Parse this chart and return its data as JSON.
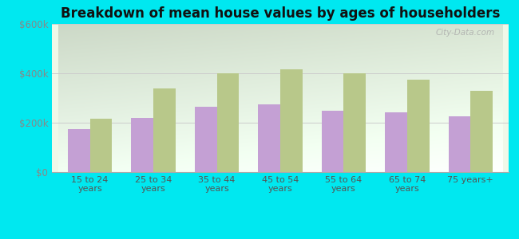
{
  "title": "Breakdown of mean house values by ages of householders",
  "categories": [
    "15 to 24\nyears",
    "25 to 34\nyears",
    "35 to 44\nyears",
    "45 to 54\nyears",
    "55 to 64\nyears",
    "65 to 74\nyears",
    "75 years+"
  ],
  "west_warwick": [
    175000,
    220000,
    265000,
    275000,
    250000,
    242000,
    225000
  ],
  "rhode_island": [
    215000,
    340000,
    400000,
    415000,
    400000,
    375000,
    330000
  ],
  "bar_color_ww": "#c4a0d4",
  "bar_color_ri": "#b8c88a",
  "outer_bg": "#00e8f0",
  "ylim": [
    0,
    600000
  ],
  "yticks": [
    0,
    200000,
    400000,
    600000
  ],
  "ytick_labels": [
    "$0",
    "$200k",
    "$400k",
    "$600k"
  ],
  "watermark": "City-Data.com",
  "bar_width": 0.35
}
